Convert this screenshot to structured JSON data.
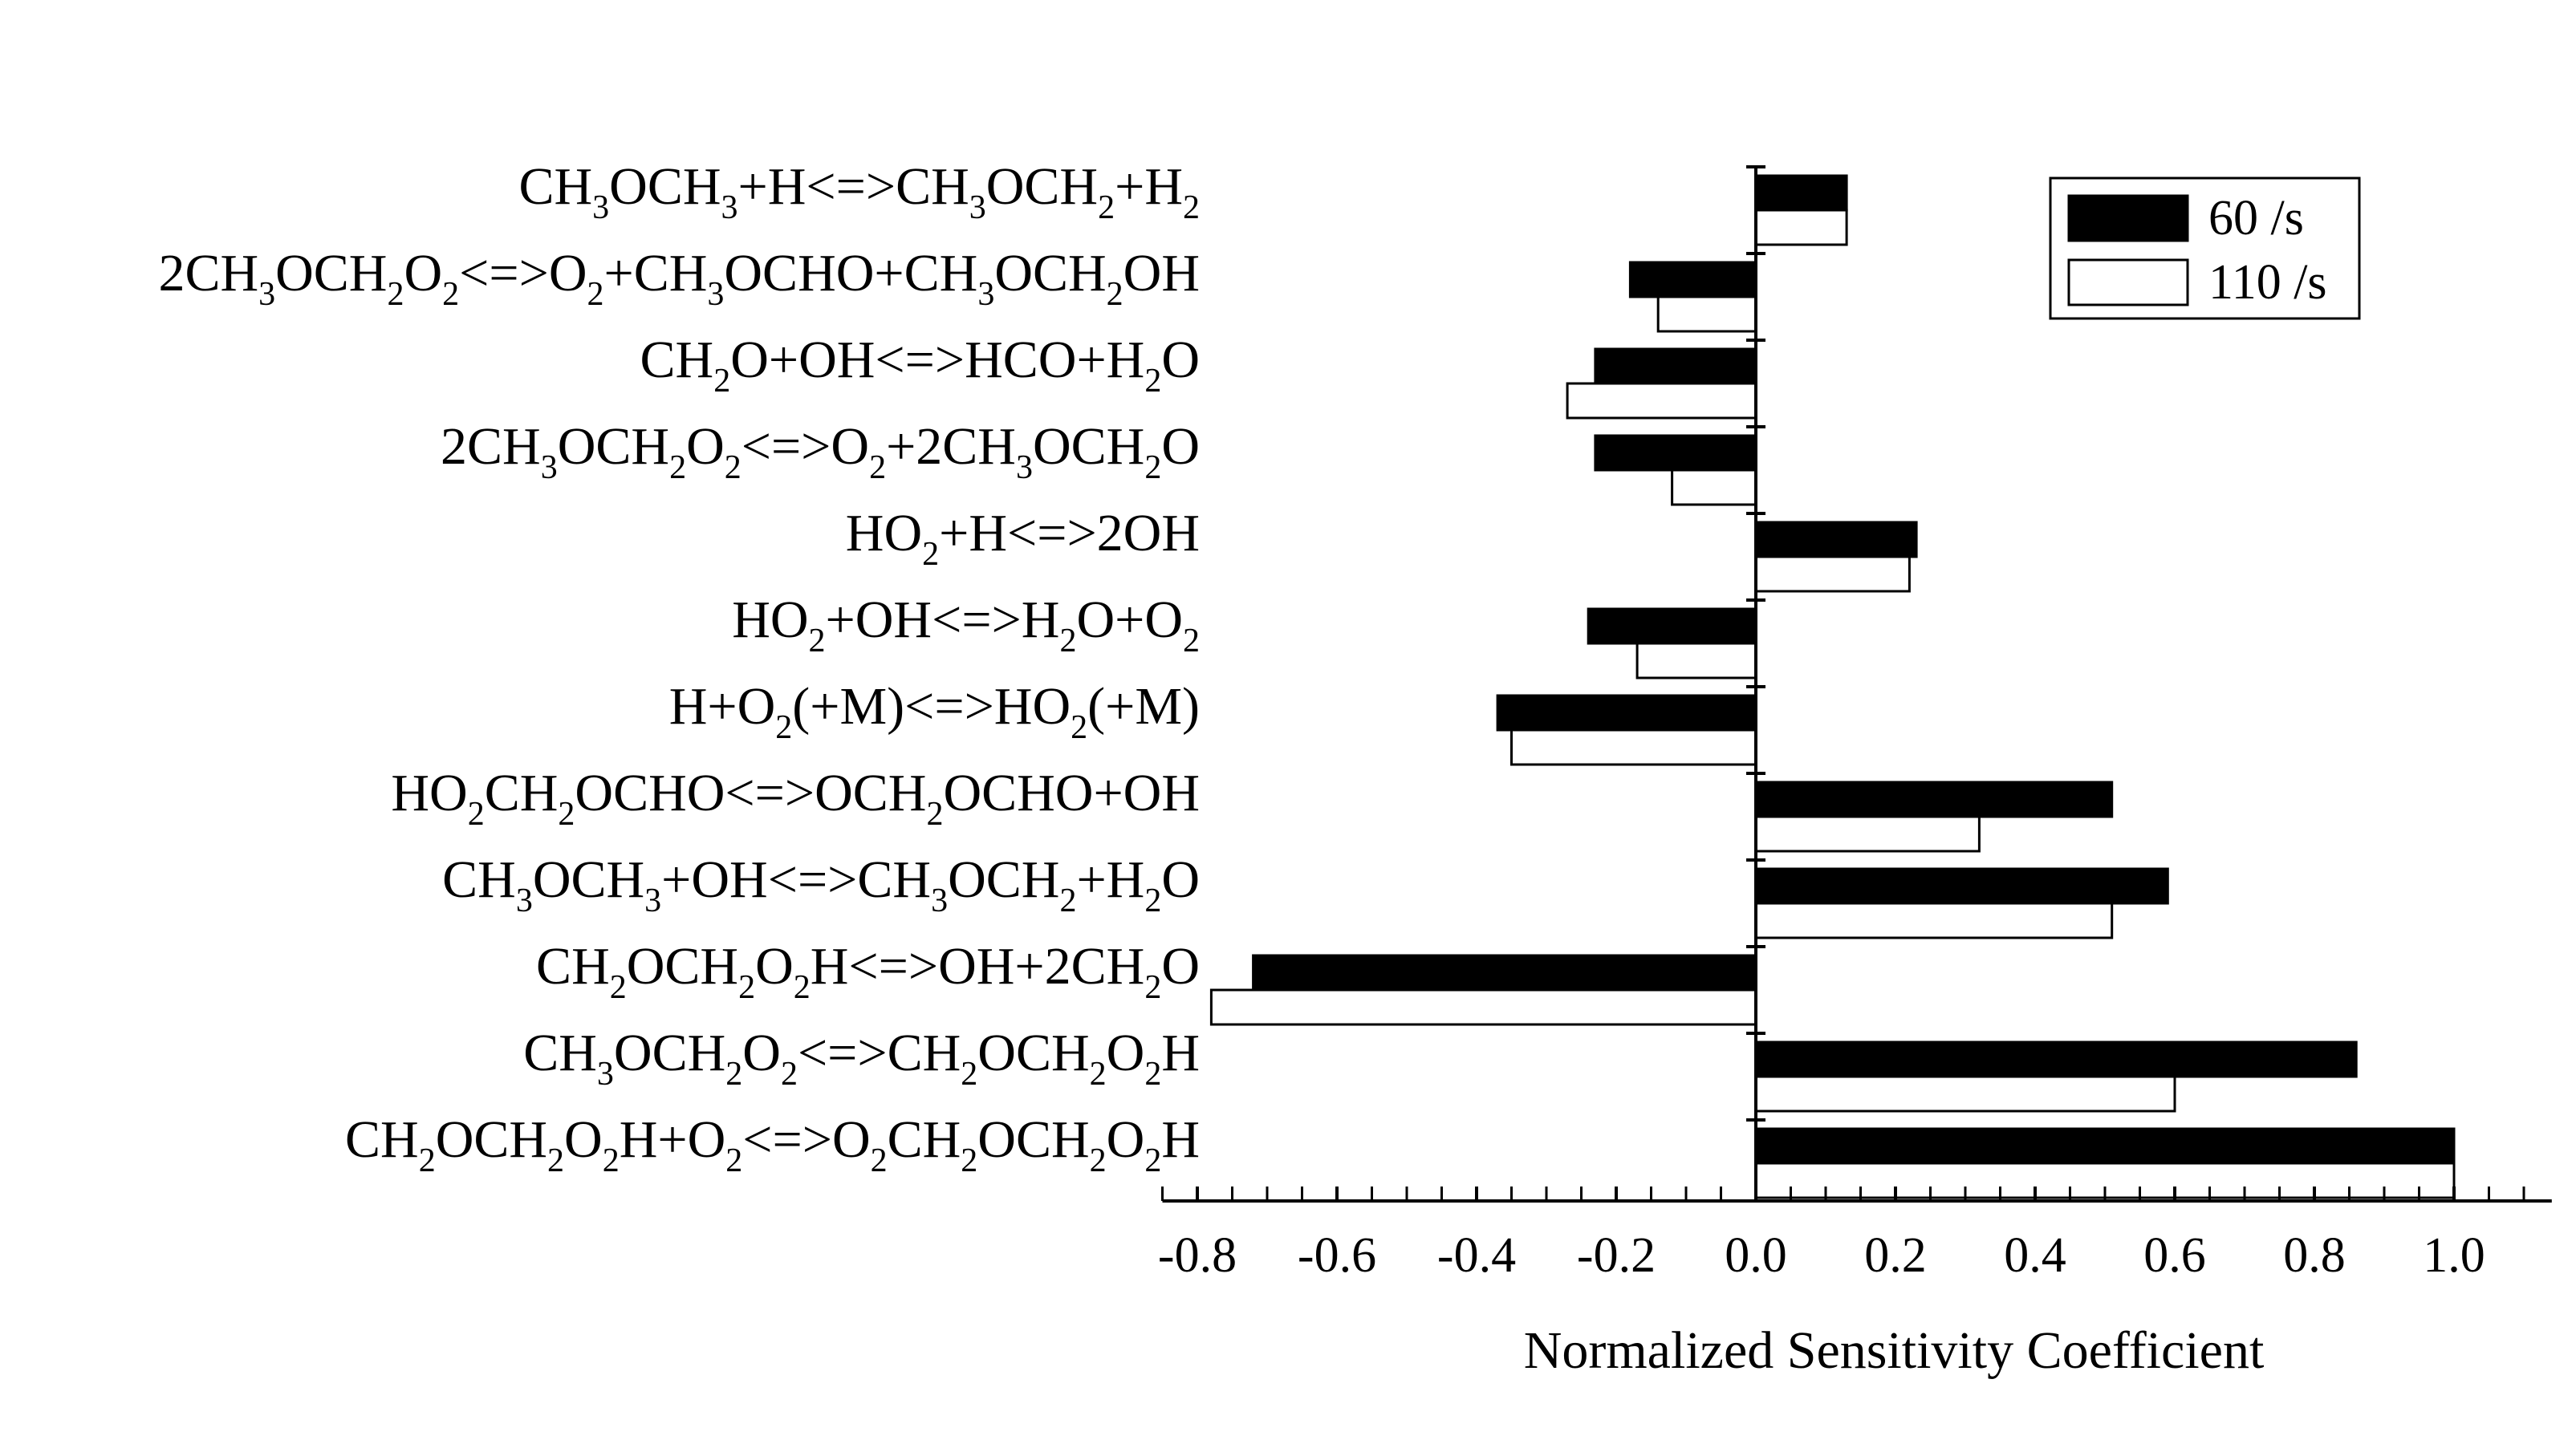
{
  "chart_data": {
    "type": "bar",
    "orientation": "horizontal",
    "categories": [
      "CH3OCH3+H<=>CH3OCH2+H2",
      "2CH3OCH2O2<=>O2+CH3OCHO+CH3OCH2OH",
      "CH2O+OH<=>HCO+H2O",
      "2CH3OCH2O2<=>O2+2CH3OCH2O",
      "HO2+H<=>2OH",
      "HO2+OH<=>H2O+O2",
      "H+O2(+M)<=>HO2(+M)",
      "HO2CH2OCHO<=>OCH2OCHO+OH",
      "CH3OCH3+OH<=>CH3OCH2+H2O",
      "CH2OCH2O2H<=>OH+2CH2O",
      "CH3OCH2O2<=>CH2OCH2O2H",
      "CH2OCH2O2H+O2<=>O2CH2OCH2O2H"
    ],
    "category_runs": [
      [
        {
          "t": "CH"
        },
        {
          "t": "3",
          "s": 1
        },
        {
          "t": "OCH"
        },
        {
          "t": "3",
          "s": 1
        },
        {
          "t": "+H<=>CH"
        },
        {
          "t": "3",
          "s": 1
        },
        {
          "t": "OCH"
        },
        {
          "t": "2",
          "s": 1
        },
        {
          "t": "+H"
        },
        {
          "t": "2",
          "s": 1
        }
      ],
      [
        {
          "t": "2CH"
        },
        {
          "t": "3",
          "s": 1
        },
        {
          "t": "OCH"
        },
        {
          "t": "2",
          "s": 1
        },
        {
          "t": "O"
        },
        {
          "t": "2",
          "s": 1
        },
        {
          "t": "<=>O"
        },
        {
          "t": "2",
          "s": 1
        },
        {
          "t": "+CH"
        },
        {
          "t": "3",
          "s": 1
        },
        {
          "t": "OCHO+CH"
        },
        {
          "t": "3",
          "s": 1
        },
        {
          "t": "OCH"
        },
        {
          "t": "2",
          "s": 1
        },
        {
          "t": "OH"
        }
      ],
      [
        {
          "t": "CH"
        },
        {
          "t": "2",
          "s": 1
        },
        {
          "t": "O+OH<=>HCO+H"
        },
        {
          "t": "2",
          "s": 1
        },
        {
          "t": "O"
        }
      ],
      [
        {
          "t": "2CH"
        },
        {
          "t": "3",
          "s": 1
        },
        {
          "t": "OCH"
        },
        {
          "t": "2",
          "s": 1
        },
        {
          "t": "O"
        },
        {
          "t": "2",
          "s": 1
        },
        {
          "t": "<=>O"
        },
        {
          "t": "2",
          "s": 1
        },
        {
          "t": "+2CH"
        },
        {
          "t": "3",
          "s": 1
        },
        {
          "t": "OCH"
        },
        {
          "t": "2",
          "s": 1
        },
        {
          "t": "O"
        }
      ],
      [
        {
          "t": "HO"
        },
        {
          "t": "2",
          "s": 1
        },
        {
          "t": "+H<=>2OH"
        }
      ],
      [
        {
          "t": "HO"
        },
        {
          "t": "2",
          "s": 1
        },
        {
          "t": "+OH<=>H"
        },
        {
          "t": "2",
          "s": 1
        },
        {
          "t": "O+O"
        },
        {
          "t": "2",
          "s": 1
        }
      ],
      [
        {
          "t": "H+O"
        },
        {
          "t": "2",
          "s": 1
        },
        {
          "t": "(+M)<=>HO"
        },
        {
          "t": "2",
          "s": 1
        },
        {
          "t": "(+M)"
        }
      ],
      [
        {
          "t": "HO"
        },
        {
          "t": "2",
          "s": 1
        },
        {
          "t": "CH"
        },
        {
          "t": "2",
          "s": 1
        },
        {
          "t": "OCHO<=>OCH"
        },
        {
          "t": "2",
          "s": 1
        },
        {
          "t": "OCHO+OH"
        }
      ],
      [
        {
          "t": "CH"
        },
        {
          "t": "3",
          "s": 1
        },
        {
          "t": "OCH"
        },
        {
          "t": "3",
          "s": 1
        },
        {
          "t": "+OH<=>CH"
        },
        {
          "t": "3",
          "s": 1
        },
        {
          "t": "OCH"
        },
        {
          "t": "2",
          "s": 1
        },
        {
          "t": "+H"
        },
        {
          "t": "2",
          "s": 1
        },
        {
          "t": "O"
        }
      ],
      [
        {
          "t": "CH"
        },
        {
          "t": "2",
          "s": 1
        },
        {
          "t": "OCH"
        },
        {
          "t": "2",
          "s": 1
        },
        {
          "t": "O"
        },
        {
          "t": "2",
          "s": 1
        },
        {
          "t": "H<=>OH+2CH"
        },
        {
          "t": "2",
          "s": 1
        },
        {
          "t": "O"
        }
      ],
      [
        {
          "t": "CH"
        },
        {
          "t": "3",
          "s": 1
        },
        {
          "t": "OCH"
        },
        {
          "t": "2",
          "s": 1
        },
        {
          "t": "O"
        },
        {
          "t": "2",
          "s": 1
        },
        {
          "t": "<=>CH"
        },
        {
          "t": "2",
          "s": 1
        },
        {
          "t": "OCH"
        },
        {
          "t": "2",
          "s": 1
        },
        {
          "t": "O"
        },
        {
          "t": "2",
          "s": 1
        },
        {
          "t": "H"
        }
      ],
      [
        {
          "t": "CH"
        },
        {
          "t": "2",
          "s": 1
        },
        {
          "t": "OCH"
        },
        {
          "t": "2",
          "s": 1
        },
        {
          "t": "O"
        },
        {
          "t": "2",
          "s": 1
        },
        {
          "t": "H+O"
        },
        {
          "t": "2",
          "s": 1
        },
        {
          "t": "<=>O"
        },
        {
          "t": "2",
          "s": 1
        },
        {
          "t": "CH"
        },
        {
          "t": "2",
          "s": 1
        },
        {
          "t": "OCH"
        },
        {
          "t": "2",
          "s": 1
        },
        {
          "t": "O"
        },
        {
          "t": "2",
          "s": 1
        },
        {
          "t": "H"
        }
      ]
    ],
    "series": [
      {
        "name": "60 /s",
        "color": "#000000",
        "values": [
          0.13,
          -0.18,
          -0.23,
          -0.23,
          0.23,
          -0.24,
          -0.37,
          0.51,
          0.59,
          -0.72,
          0.86,
          1.0
        ]
      },
      {
        "name": "110 /s",
        "color": "#ffffff",
        "values": [
          0.13,
          -0.14,
          -0.27,
          -0.12,
          0.22,
          -0.17,
          -0.35,
          0.32,
          0.51,
          -0.78,
          0.6,
          1.0
        ]
      }
    ],
    "xlabel": "Normalized Sensitivity Coefficient",
    "ylabel": "",
    "xlim": [
      -0.85,
      1.14
    ],
    "xticks": [
      -0.8,
      -0.6,
      -0.4,
      -0.2,
      0.0,
      0.2,
      0.4,
      0.6,
      0.8,
      1.0
    ],
    "xtick_labels": [
      "-0.8",
      "-0.6",
      "-0.4",
      "-0.2",
      "0.0",
      "0.2",
      "0.4",
      "0.6",
      "0.8",
      "1.0"
    ],
    "minor_tick_step": 0.05,
    "grid": false,
    "legend_position": "top-right"
  }
}
